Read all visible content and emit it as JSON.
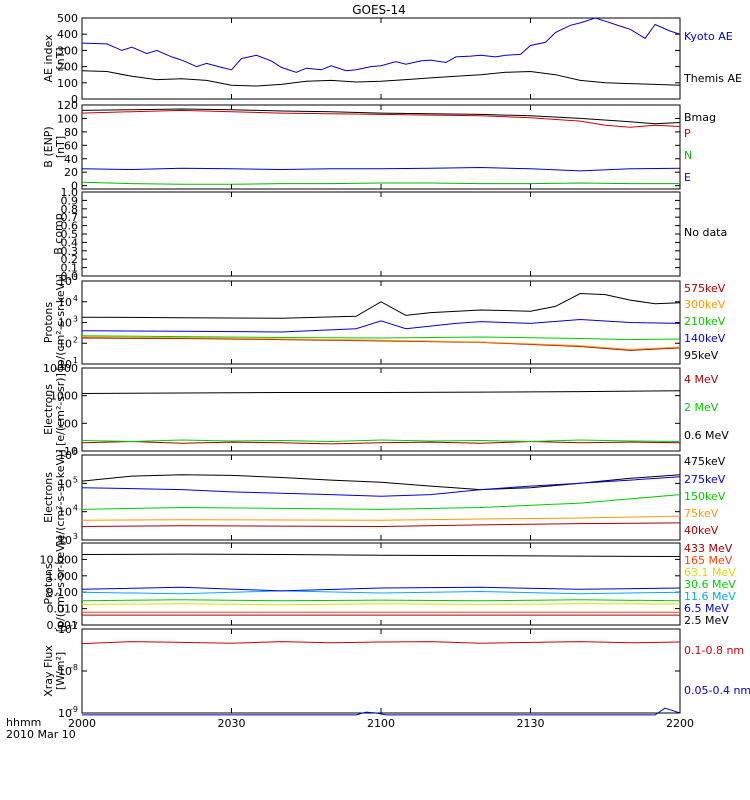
{
  "title": "GOES-14",
  "xaxis": {
    "ticks": [
      "2000",
      "2030",
      "2100",
      "2130",
      "2200"
    ],
    "tick_values": [
      0,
      30,
      60,
      90,
      120
    ],
    "unit_label": "hhmm",
    "date_label": "2010 Mar 10"
  },
  "chart_data": [
    {
      "type": "line",
      "panel": "AE index",
      "ylabel": "AE index",
      "yunit": "[nT]",
      "ylim": [
        0,
        500
      ],
      "yticks": [
        "0",
        "100",
        "200",
        "300",
        "400",
        "500"
      ],
      "yscale": "linear",
      "x_range": [
        0,
        120
      ],
      "series": [
        {
          "name": "Kyoto AE",
          "color": "#0000cc",
          "x": [
            0,
            5,
            8,
            10,
            13,
            15,
            18,
            20,
            23,
            25,
            28,
            30,
            32,
            35,
            38,
            40,
            43,
            45,
            48,
            50,
            53,
            55,
            58,
            60,
            63,
            65,
            68,
            70,
            73,
            75,
            78,
            80,
            83,
            85,
            88,
            90,
            93,
            95,
            98,
            100,
            103,
            105,
            108,
            110,
            113,
            115,
            118,
            120
          ],
          "y": [
            345,
            340,
            300,
            320,
            280,
            300,
            260,
            240,
            200,
            220,
            195,
            180,
            250,
            270,
            235,
            195,
            165,
            190,
            180,
            205,
            175,
            180,
            200,
            205,
            230,
            215,
            235,
            240,
            225,
            260,
            265,
            270,
            260,
            270,
            275,
            330,
            350,
            410,
            455,
            470,
            500,
            480,
            450,
            430,
            375,
            460,
            420,
            400
          ]
        },
        {
          "name": "Themis AE",
          "color": "#000000",
          "x": [
            0,
            5,
            10,
            15,
            20,
            25,
            30,
            35,
            40,
            45,
            50,
            55,
            60,
            65,
            70,
            75,
            80,
            85,
            90,
            95,
            100,
            105,
            110,
            115,
            120
          ],
          "y": [
            175,
            170,
            140,
            120,
            125,
            115,
            85,
            80,
            90,
            110,
            115,
            105,
            110,
            120,
            130,
            140,
            150,
            165,
            170,
            150,
            115,
            100,
            95,
            90,
            85
          ]
        }
      ]
    },
    {
      "type": "line",
      "panel": "B (ENP)",
      "ylabel": "B (ENP)",
      "yunit": "[nT]",
      "ylim": [
        -5,
        120
      ],
      "yticks": [
        "0",
        "20",
        "40",
        "60",
        "80",
        "100",
        "120"
      ],
      "yscale": "linear",
      "x_range": [
        0,
        120
      ],
      "series": [
        {
          "name": "Bmag",
          "color": "#000000",
          "x": [
            0,
            10,
            20,
            30,
            40,
            50,
            60,
            70,
            80,
            90,
            100,
            110,
            115,
            120
          ],
          "y": [
            112,
            113,
            114,
            113,
            111,
            110,
            108,
            107,
            106,
            104,
            100,
            95,
            92,
            94
          ]
        },
        {
          "name": "P",
          "color": "#cc0000",
          "x": [
            0,
            10,
            20,
            30,
            40,
            50,
            60,
            70,
            80,
            90,
            100,
            105,
            110,
            115,
            120
          ],
          "y": [
            108,
            110,
            112,
            110,
            108,
            107,
            106,
            105,
            104,
            101,
            96,
            90,
            87,
            90,
            88
          ]
        },
        {
          "name": "N",
          "color": "#00bb00",
          "x": [
            0,
            10,
            20,
            30,
            40,
            50,
            60,
            70,
            80,
            90,
            100,
            110,
            120
          ],
          "y": [
            5,
            3,
            2,
            2,
            3,
            3,
            4,
            4,
            3,
            3,
            4,
            3,
            3
          ]
        },
        {
          "name": "E",
          "color": "#0000cc",
          "x": [
            0,
            10,
            20,
            30,
            40,
            50,
            60,
            70,
            80,
            90,
            100,
            110,
            120
          ],
          "y": [
            25,
            24,
            26,
            25,
            24,
            25,
            25,
            26,
            27,
            25,
            22,
            25,
            26
          ]
        }
      ]
    },
    {
      "type": "line",
      "panel": "B comp",
      "ylabel": "B comp",
      "ylim": [
        0,
        1
      ],
      "yticks": [
        "0.0",
        "0.1",
        "0.2",
        "0.3",
        "0.4",
        "0.5",
        "0.6",
        "0.7",
        "0.8",
        "0.9",
        "1.0"
      ],
      "yscale": "linear",
      "x_range": [
        0,
        120
      ],
      "no_data_label": "No data",
      "series": []
    },
    {
      "type": "line",
      "panel": "Protons",
      "ylabel": "Protons",
      "yunit": "[p/(cm²-s-sr-keV)]",
      "ylim": [
        10,
        100000
      ],
      "ytick_exponents": [
        1,
        2,
        3,
        4,
        5
      ],
      "yscale": "log",
      "x_range": [
        0,
        120
      ],
      "series": [
        {
          "name": "575keV",
          "color": "#aa0000",
          "x": [
            0,
            20,
            40,
            60,
            80,
            100,
            110,
            120
          ],
          "y": [
            180,
            170,
            150,
            130,
            110,
            70,
            45,
            60
          ]
        },
        {
          "name": "300keV",
          "color": "#ff9900",
          "x": [
            0,
            20,
            40,
            60,
            80,
            100,
            110,
            120
          ],
          "y": [
            200,
            185,
            160,
            140,
            115,
            75,
            50,
            65
          ]
        },
        {
          "name": "210keV",
          "color": "#00cc00",
          "x": [
            0,
            20,
            40,
            60,
            80,
            100,
            110,
            120
          ],
          "y": [
            230,
            210,
            190,
            180,
            200,
            170,
            150,
            160
          ]
        },
        {
          "name": "140keV",
          "color": "#0000dd",
          "x": [
            0,
            20,
            40,
            55,
            60,
            65,
            75,
            80,
            90,
            100,
            110,
            120
          ],
          "y": [
            400,
            380,
            350,
            500,
            1200,
            500,
            900,
            1100,
            900,
            1400,
            1000,
            900
          ]
        },
        {
          "name": "95keV",
          "color": "#000000",
          "x": [
            0,
            20,
            40,
            55,
            60,
            65,
            70,
            80,
            90,
            95,
            100,
            105,
            110,
            115,
            120
          ],
          "y": [
            1800,
            1700,
            1600,
            2000,
            10000,
            2200,
            3000,
            4000,
            3500,
            6000,
            25000,
            22000,
            12000,
            8000,
            9000
          ]
        }
      ]
    },
    {
      "type": "line",
      "panel": "Electrons (integral)",
      "ylabel": "Electrons",
      "yunit": "[e/(cm²-s-sr)]",
      "ylim": [
        10,
        10000
      ],
      "yticks": [
        "10",
        "100",
        "1000",
        "10000"
      ],
      "yscale": "log",
      "x_range": [
        0,
        120
      ],
      "series": [
        {
          "name": "4 MeV",
          "color": "#aa0000",
          "x": [
            0,
            10,
            20,
            30,
            40,
            50,
            60,
            70,
            80,
            90,
            100,
            110,
            120
          ],
          "y": [
            20,
            22,
            19,
            21,
            20,
            18,
            20,
            21,
            19,
            22,
            20,
            21,
            20
          ]
        },
        {
          "name": "2 MeV",
          "color": "#00cc00",
          "x": [
            0,
            10,
            20,
            30,
            40,
            50,
            60,
            70,
            80,
            90,
            100,
            110,
            120
          ],
          "y": [
            24,
            22,
            25,
            23,
            24,
            22,
            25,
            23,
            24,
            22,
            25,
            23,
            22
          ]
        },
        {
          "name": "0.6 MeV",
          "color": "#000000",
          "x": [
            0,
            20,
            40,
            60,
            80,
            100,
            120
          ],
          "y": [
            1200,
            1250,
            1300,
            1300,
            1350,
            1400,
            1500
          ]
        }
      ]
    },
    {
      "type": "line",
      "panel": "Electrons (differential)",
      "ylabel": "Electrons",
      "yunit": "[e/(cm²-s-sr-keV)]",
      "ylim": [
        1000,
        1000000
      ],
      "ytick_exponents": [
        3,
        4,
        5,
        6
      ],
      "yscale": "log",
      "x_range": [
        0,
        120
      ],
      "series": [
        {
          "name": "475keV",
          "color": "#000000",
          "x": [
            0,
            10,
            20,
            30,
            40,
            50,
            60,
            70,
            80,
            90,
            100,
            110,
            120
          ],
          "y": [
            120000,
            180000,
            200000,
            190000,
            160000,
            130000,
            110000,
            80000,
            60000,
            70000,
            100000,
            150000,
            200000
          ]
        },
        {
          "name": "275keV",
          "color": "#0000dd",
          "x": [
            0,
            10,
            20,
            30,
            40,
            50,
            60,
            70,
            80,
            90,
            100,
            110,
            120
          ],
          "y": [
            70000,
            65000,
            60000,
            50000,
            45000,
            40000,
            35000,
            40000,
            60000,
            80000,
            100000,
            130000,
            170000
          ]
        },
        {
          "name": "150keV",
          "color": "#00cc00",
          "x": [
            0,
            20,
            40,
            60,
            80,
            100,
            120
          ],
          "y": [
            12000,
            14000,
            13000,
            12000,
            14000,
            20000,
            40000
          ]
        },
        {
          "name": "75keV",
          "color": "#ff9900",
          "x": [
            0,
            20,
            40,
            60,
            80,
            100,
            120
          ],
          "y": [
            5000,
            5200,
            5100,
            5000,
            5500,
            6000,
            7000
          ]
        },
        {
          "name": "40keV",
          "color": "#aa0000",
          "x": [
            0,
            20,
            40,
            60,
            80,
            100,
            120
          ],
          "y": [
            3000,
            3200,
            3100,
            3000,
            3400,
            3800,
            4000
          ]
        }
      ]
    },
    {
      "type": "line",
      "panel": "Protons (high energy)",
      "ylabel": "Protons",
      "yunit": "[p/(cm²-s-sr-keV)]",
      "ylim": [
        0.001,
        100
      ],
      "yticks": [
        "0.001",
        "0.010",
        "0.100",
        "1.000",
        "10.000"
      ],
      "yscale": "log",
      "x_range": [
        0,
        120
      ],
      "series": [
        {
          "name": "433 MeV",
          "color": "#aa0000",
          "x": [
            0,
            20,
            40,
            60,
            80,
            100,
            120
          ],
          "y": [
            0.004,
            0.004,
            0.004,
            0.004,
            0.004,
            0.004,
            0.004
          ]
        },
        {
          "name": "165 MeV",
          "color": "#ff4400",
          "x": [
            0,
            20,
            40,
            60,
            80,
            100,
            120
          ],
          "y": [
            0.006,
            0.006,
            0.006,
            0.006,
            0.006,
            0.006,
            0.006
          ]
        },
        {
          "name": "63.1 MeV",
          "color": "#dddd00",
          "x": [
            0,
            20,
            40,
            60,
            80,
            100,
            120
          ],
          "y": [
            0.018,
            0.02,
            0.017,
            0.02,
            0.018,
            0.02,
            0.019
          ]
        },
        {
          "name": "30.6 MeV",
          "color": "#00cc00",
          "x": [
            0,
            20,
            40,
            60,
            80,
            100,
            120
          ],
          "y": [
            0.03,
            0.035,
            0.03,
            0.033,
            0.03,
            0.035,
            0.03
          ]
        },
        {
          "name": "11.6 MeV",
          "color": "#00aaff",
          "x": [
            0,
            20,
            40,
            60,
            80,
            100,
            120
          ],
          "y": [
            0.1,
            0.08,
            0.12,
            0.09,
            0.11,
            0.08,
            0.1
          ]
        },
        {
          "name": "6.5 MeV",
          "color": "#0000cc",
          "x": [
            0,
            20,
            40,
            60,
            80,
            100,
            120
          ],
          "y": [
            0.15,
            0.2,
            0.12,
            0.18,
            0.2,
            0.15,
            0.18
          ]
        },
        {
          "name": "2.5 MeV",
          "color": "#000000",
          "x": [
            0,
            20,
            40,
            60,
            80,
            100,
            120
          ],
          "y": [
            20,
            21,
            20,
            18,
            17,
            16,
            15
          ]
        }
      ]
    },
    {
      "type": "line",
      "panel": "Xray Flux",
      "ylabel": "Xray Flux",
      "yunit": "[W/m²]",
      "ylim": [
        1e-09,
        1e-07
      ],
      "ytick_exponents": [
        -9,
        -8,
        -7
      ],
      "yscale": "log",
      "x_range": [
        0,
        120
      ],
      "series": [
        {
          "name": "0.1-0.8 nm",
          "color": "#cc0000",
          "x": [
            0,
            10,
            20,
            30,
            40,
            50,
            60,
            70,
            80,
            90,
            100,
            110,
            120
          ],
          "y": [
            4.5e-08,
            5e-08,
            4.8e-08,
            4.6e-08,
            5e-08,
            4.7e-08,
            4.9e-08,
            5e-08,
            4.6e-08,
            4.8e-08,
            5e-08,
            4.7e-08,
            4.9e-08
          ]
        },
        {
          "name": "0.05-0.4 nm",
          "color": "#0000cc",
          "x": [
            0,
            10,
            20,
            30,
            40,
            50,
            55,
            57,
            59,
            61,
            63,
            65,
            67,
            70,
            80,
            90,
            100,
            110,
            115,
            117,
            119,
            120
          ],
          "y": [
            9e-10,
            9e-10,
            9e-10,
            9e-10,
            9e-10,
            9e-10,
            9e-10,
            1.05e-09,
            1e-09,
            9e-10,
            9e-10,
            9e-10,
            9e-10,
            9e-10,
            9e-10,
            9e-10,
            9e-10,
            9e-10,
            9e-10,
            1.3e-09,
            1.1e-09,
            1e-09
          ]
        }
      ]
    }
  ]
}
